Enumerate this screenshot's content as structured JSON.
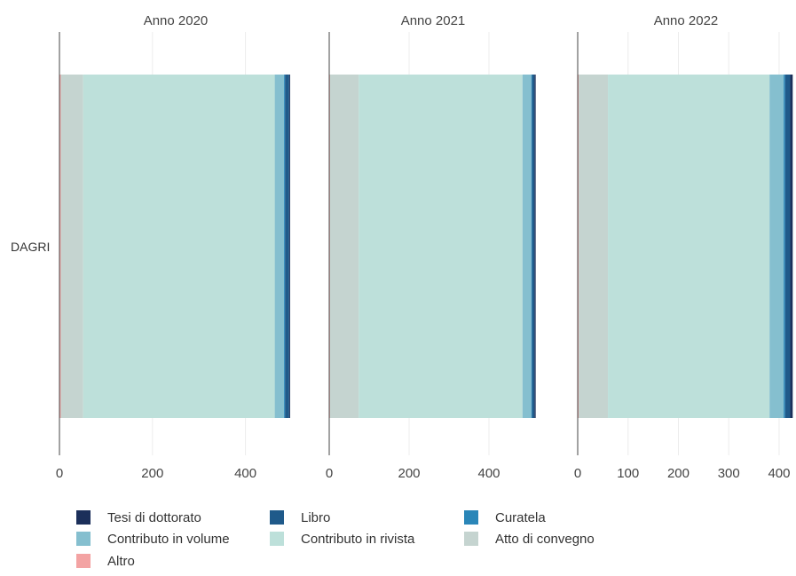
{
  "chart_data": {
    "type": "bar",
    "orientation": "horizontal",
    "stacked": true,
    "category": "DAGRI",
    "series_order": [
      "Altro",
      "Atto di convegno",
      "Contributo in rivista",
      "Contributo in volume",
      "Curatela",
      "Libro",
      "Tesi di dottorato"
    ],
    "colors": {
      "Tesi di dottorato": "#1b2f5a",
      "Libro": "#1f5a8a",
      "Curatela": "#2a86b8",
      "Contributo in volume": "#85bfcf",
      "Contributo in rivista": "#bde0da",
      "Atto di convegno": "#c5d4d0",
      "Altro": "#f3a3a3"
    },
    "facets": [
      {
        "title": "Anno 2020",
        "xlim": [
          0,
          500
        ],
        "ticks": [
          0,
          200,
          400
        ],
        "values": {
          "Altro": 3,
          "Atto di convegno": 48,
          "Contributo in rivista": 412,
          "Contributo in volume": 20,
          "Curatela": 2,
          "Libro": 9,
          "Tesi di dottorato": 2
        }
      },
      {
        "title": "Anno 2021",
        "xlim": [
          0,
          520
        ],
        "ticks": [
          0,
          200,
          400
        ],
        "values": {
          "Altro": 2,
          "Atto di convegno": 72,
          "Contributo in rivista": 410,
          "Contributo in volume": 22,
          "Curatela": 2,
          "Libro": 6,
          "Tesi di dottorato": 3
        }
      },
      {
        "title": "Anno 2022",
        "xlim": [
          0,
          430
        ],
        "ticks": [
          0,
          100,
          200,
          300,
          400
        ],
        "values": {
          "Altro": 2,
          "Atto di convegno": 58,
          "Contributo in rivista": 321,
          "Contributo in volume": 28,
          "Curatela": 3,
          "Libro": 10,
          "Tesi di dottorato": 5
        }
      }
    ],
    "legend": {
      "placement": "bottom",
      "entries": [
        "Tesi di dottorato",
        "Libro",
        "Curatela",
        "Contributo in volume",
        "Contributo in rivista",
        "Atto di convegno",
        "Altro"
      ]
    },
    "grid": true
  }
}
